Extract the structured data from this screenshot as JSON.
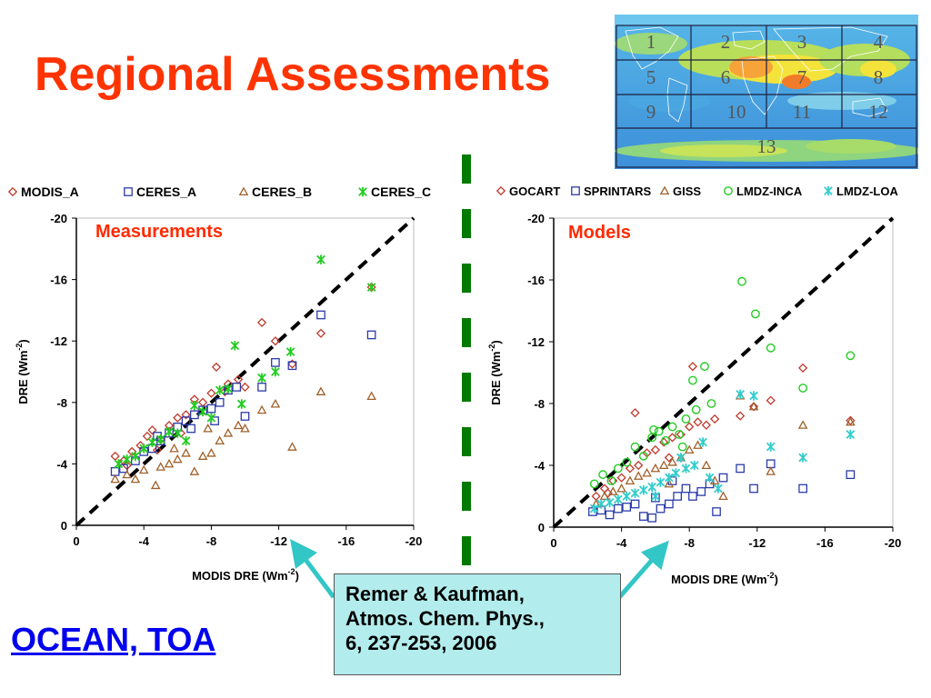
{
  "slide": {
    "title": "Regional Assessments",
    "footer_link": "OCEAN, TOA",
    "reference": [
      "Remer & Kaufman,",
      "Atmos. Chem. Phys.,",
      "6, 237-253, 2006"
    ],
    "colors": {
      "title": "#ff3300",
      "link": "#0000ee",
      "ref_box": "#b3ecec",
      "divider": "#007a00",
      "arrow": "#33c6c6"
    }
  },
  "map": {
    "region_labels": [
      "1",
      "2",
      "3",
      "4",
      "5",
      "6",
      "7",
      "8",
      "9",
      "10",
      "11",
      "12",
      "13"
    ]
  },
  "chart_data": [
    {
      "type": "scatter",
      "annotation": "Measurements",
      "xlabel": "MODIS DRE (Wm",
      "xlabel_sup": "-2",
      "ylabel": "DRE (Wm",
      "ylabel_sup": "-2",
      "xlim": [
        0,
        -20
      ],
      "ylim": [
        0,
        -20
      ],
      "xticks": [
        "0",
        "-4",
        "-8",
        "-12",
        "-16",
        "-20"
      ],
      "yticks": [
        "-20",
        "-16",
        "-12",
        "-8",
        "-4",
        "0"
      ],
      "reference_line": "1:1",
      "legend": [
        {
          "name": "MODIS_A",
          "marker": "diamond",
          "color": "#c0392b"
        },
        {
          "name": "CERES_A",
          "marker": "square",
          "color": "#2a3aa8"
        },
        {
          "name": "CERES_B",
          "marker": "triangle",
          "color": "#a0602a"
        },
        {
          "name": "CERES_C",
          "marker": "star",
          "color": "#22cc22"
        }
      ],
      "series": [
        {
          "name": "MODIS_A",
          "points": [
            [
              -2.3,
              -4.5
            ],
            [
              -2.8,
              -4.2
            ],
            [
              -3.3,
              -4.8
            ],
            [
              -3.8,
              -5.2
            ],
            [
              -4.2,
              -5.8
            ],
            [
              -4.5,
              -6.2
            ],
            [
              -5.0,
              -5.6
            ],
            [
              -5.5,
              -6.5
            ],
            [
              -6.0,
              -7.0
            ],
            [
              -6.5,
              -7.2
            ],
            [
              -7.0,
              -8.2
            ],
            [
              -7.5,
              -8.0
            ],
            [
              -8.0,
              -8.6
            ],
            [
              -8.3,
              -10.3
            ],
            [
              -9.0,
              -9.2
            ],
            [
              -9.6,
              -9.5
            ],
            [
              -10.0,
              -9.0
            ],
            [
              -11.0,
              -13.2
            ],
            [
              -11.8,
              -12.0
            ],
            [
              -12.8,
              -10.5
            ],
            [
              -14.5,
              -12.5
            ],
            [
              -17.5,
              -15.5
            ],
            [
              -3.0,
              -3.9
            ],
            [
              -4.8,
              -4.9
            ],
            [
              -6.2,
              -6.0
            ],
            [
              -8.8,
              -8.7
            ]
          ]
        },
        {
          "name": "CERES_A",
          "points": [
            [
              -2.3,
              -3.5
            ],
            [
              -2.8,
              -3.7
            ],
            [
              -3.5,
              -4.2
            ],
            [
              -4.0,
              -4.8
            ],
            [
              -4.5,
              -5.0
            ],
            [
              -5.0,
              -5.5
            ],
            [
              -5.5,
              -6.0
            ],
            [
              -6.0,
              -6.4
            ],
            [
              -6.5,
              -6.8
            ],
            [
              -7.0,
              -7.2
            ],
            [
              -7.5,
              -7.5
            ],
            [
              -8.0,
              -7.6
            ],
            [
              -8.5,
              -8.0
            ],
            [
              -9.0,
              -8.8
            ],
            [
              -9.5,
              -9.0
            ],
            [
              -10.0,
              -7.1
            ],
            [
              -11.0,
              -9.0
            ],
            [
              -11.8,
              -10.6
            ],
            [
              -12.8,
              -10.4
            ],
            [
              -14.5,
              -13.7
            ],
            [
              -17.5,
              -12.4
            ],
            [
              -4.8,
              -5.8
            ],
            [
              -6.8,
              -6.3
            ],
            [
              -8.2,
              -6.8
            ]
          ]
        },
        {
          "name": "CERES_B",
          "points": [
            [
              -2.3,
              -3.0
            ],
            [
              -3.0,
              -3.3
            ],
            [
              -3.5,
              -3.0
            ],
            [
              -4.0,
              -3.6
            ],
            [
              -4.7,
              -2.6
            ],
            [
              -5.0,
              -3.8
            ],
            [
              -5.5,
              -4.0
            ],
            [
              -6.0,
              -4.3
            ],
            [
              -6.5,
              -4.7
            ],
            [
              -7.0,
              -3.5
            ],
            [
              -7.5,
              -4.5
            ],
            [
              -8.0,
              -4.7
            ],
            [
              -8.5,
              -5.5
            ],
            [
              -9.0,
              -6.0
            ],
            [
              -9.6,
              -6.5
            ],
            [
              -10.0,
              -6.3
            ],
            [
              -11.0,
              -7.5
            ],
            [
              -11.8,
              -7.9
            ],
            [
              -12.8,
              -5.1
            ],
            [
              -14.5,
              -8.7
            ],
            [
              -17.5,
              -8.4
            ],
            [
              -5.8,
              -5.0
            ],
            [
              -7.8,
              -6.3
            ]
          ]
        },
        {
          "name": "CERES_C",
          "points": [
            [
              -2.5,
              -4.0
            ],
            [
              -3.0,
              -4.3
            ],
            [
              -3.5,
              -4.5
            ],
            [
              -4.0,
              -5.0
            ],
            [
              -4.5,
              -5.4
            ],
            [
              -5.0,
              -5.6
            ],
            [
              -5.5,
              -6.1
            ],
            [
              -6.0,
              -6.0
            ],
            [
              -6.5,
              -5.5
            ],
            [
              -7.0,
              -7.8
            ],
            [
              -7.5,
              -7.4
            ],
            [
              -8.0,
              -7.0
            ],
            [
              -8.5,
              -8.8
            ],
            [
              -9.0,
              -8.9
            ],
            [
              -9.4,
              -11.7
            ],
            [
              -9.8,
              -7.9
            ],
            [
              -11.0,
              -9.6
            ],
            [
              -11.8,
              -10.0
            ],
            [
              -12.7,
              -11.3
            ],
            [
              -14.5,
              -17.3
            ],
            [
              -17.5,
              -15.5
            ]
          ]
        }
      ]
    },
    {
      "type": "scatter",
      "annotation": "Models",
      "xlabel": "MODIS DRE (Wm",
      "xlabel_sup": "-2",
      "ylabel": "DRE (Wm",
      "ylabel_sup": "-2",
      "xlim": [
        0,
        -20
      ],
      "ylim": [
        0,
        -20
      ],
      "xticks": [
        "0",
        "-4",
        "-8",
        "-12",
        "-16",
        "-20"
      ],
      "yticks": [
        "-20",
        "-16",
        "-12",
        "-8",
        "-4",
        "0"
      ],
      "reference_line": "1:1",
      "legend": [
        {
          "name": "GOCART",
          "marker": "diamond",
          "color": "#c0392b"
        },
        {
          "name": "SPRINTARS",
          "marker": "square",
          "color": "#2a3aa8"
        },
        {
          "name": "GISS",
          "marker": "triangle",
          "color": "#a0602a"
        },
        {
          "name": "LMDZ-INCA",
          "marker": "circle",
          "color": "#22cc22"
        },
        {
          "name": "LMDZ-LOA",
          "marker": "star",
          "color": "#33cccc"
        }
      ],
      "series": [
        {
          "name": "GOCART",
          "points": [
            [
              -2.5,
              -2.0
            ],
            [
              -3.0,
              -2.5
            ],
            [
              -3.5,
              -3.0
            ],
            [
              -4.0,
              -3.2
            ],
            [
              -4.5,
              -3.8
            ],
            [
              -5.0,
              -4.0
            ],
            [
              -5.5,
              -4.8
            ],
            [
              -6.0,
              -5.0
            ],
            [
              -6.5,
              -5.5
            ],
            [
              -7.0,
              -5.8
            ],
            [
              -7.5,
              -6.0
            ],
            [
              -8.0,
              -6.5
            ],
            [
              -8.2,
              -10.4
            ],
            [
              -8.5,
              -6.8
            ],
            [
              -9.0,
              -6.6
            ],
            [
              -9.5,
              -7.0
            ],
            [
              -11.0,
              -7.2
            ],
            [
              -11.8,
              -7.8
            ],
            [
              -12.8,
              -8.2
            ],
            [
              -14.7,
              -10.3
            ],
            [
              -17.5,
              -6.9
            ],
            [
              -4.8,
              -7.4
            ],
            [
              -6.8,
              -4.5
            ],
            [
              -3.2,
              -2.2
            ]
          ]
        },
        {
          "name": "SPRINTARS",
          "points": [
            [
              -2.3,
              -1.0
            ],
            [
              -2.8,
              -1.1
            ],
            [
              -3.3,
              -0.8
            ],
            [
              -3.8,
              -1.2
            ],
            [
              -4.3,
              -1.3
            ],
            [
              -4.8,
              -1.5
            ],
            [
              -5.3,
              -0.7
            ],
            [
              -5.8,
              -0.6
            ],
            [
              -6.3,
              -1.2
            ],
            [
              -6.8,
              -1.5
            ],
            [
              -7.3,
              -2.0
            ],
            [
              -7.8,
              -2.5
            ],
            [
              -8.2,
              -2.0
            ],
            [
              -8.7,
              -2.3
            ],
            [
              -9.2,
              -2.8
            ],
            [
              -9.6,
              -1.0
            ],
            [
              -10.0,
              -3.2
            ],
            [
              -11.0,
              -3.8
            ],
            [
              -11.8,
              -2.5
            ],
            [
              -12.8,
              -4.1
            ],
            [
              -14.7,
              -2.5
            ],
            [
              -17.5,
              -3.4
            ],
            [
              -6.0,
              -1.9
            ],
            [
              -7.0,
              -3.0
            ]
          ]
        },
        {
          "name": "GISS",
          "points": [
            [
              -2.5,
              -1.5
            ],
            [
              -3.0,
              -2.0
            ],
            [
              -3.5,
              -2.3
            ],
            [
              -4.0,
              -2.5
            ],
            [
              -4.5,
              -3.0
            ],
            [
              -5.0,
              -3.3
            ],
            [
              -5.5,
              -3.5
            ],
            [
              -6.0,
              -3.8
            ],
            [
              -6.5,
              -4.0
            ],
            [
              -7.0,
              -4.2
            ],
            [
              -7.5,
              -4.5
            ],
            [
              -8.0,
              -5.0
            ],
            [
              -8.5,
              -5.3
            ],
            [
              -9.0,
              -4.0
            ],
            [
              -9.5,
              -3.0
            ],
            [
              -10.0,
              -2.0
            ],
            [
              -11.0,
              -8.5
            ],
            [
              -11.8,
              -7.8
            ],
            [
              -12.8,
              -3.6
            ],
            [
              -14.7,
              -6.6
            ],
            [
              -17.5,
              -6.8
            ],
            [
              -6.8,
              -2.8
            ]
          ]
        },
        {
          "name": "LMDZ-INCA",
          "points": [
            [
              -2.4,
              -2.8
            ],
            [
              -2.9,
              -3.4
            ],
            [
              -3.4,
              -3.0
            ],
            [
              -3.8,
              -3.8
            ],
            [
              -4.3,
              -4.2
            ],
            [
              -4.8,
              -5.2
            ],
            [
              -5.3,
              -4.6
            ],
            [
              -5.8,
              -5.8
            ],
            [
              -6.2,
              -6.2
            ],
            [
              -6.6,
              -5.6
            ],
            [
              -7.0,
              -6.5
            ],
            [
              -7.4,
              -6.0
            ],
            [
              -7.8,
              -7.0
            ],
            [
              -8.2,
              -9.5
            ],
            [
              -8.4,
              -7.6
            ],
            [
              -8.9,
              -10.4
            ],
            [
              -9.3,
              -8.0
            ],
            [
              -11.1,
              -15.9
            ],
            [
              -11.9,
              -13.8
            ],
            [
              -12.8,
              -11.6
            ],
            [
              -14.7,
              -9.0
            ],
            [
              -17.5,
              -11.1
            ],
            [
              -5.9,
              -6.3
            ],
            [
              -7.6,
              -5.2
            ]
          ]
        },
        {
          "name": "LMDZ-LOA",
          "points": [
            [
              -2.4,
              -1.2
            ],
            [
              -2.8,
              -1.5
            ],
            [
              -3.3,
              -1.6
            ],
            [
              -3.8,
              -1.8
            ],
            [
              -4.3,
              -2.0
            ],
            [
              -4.8,
              -2.2
            ],
            [
              -5.3,
              -2.4
            ],
            [
              -5.8,
              -2.6
            ],
            [
              -6.3,
              -2.9
            ],
            [
              -6.8,
              -3.2
            ],
            [
              -7.2,
              -3.5
            ],
            [
              -7.8,
              -3.8
            ],
            [
              -8.3,
              -4.0
            ],
            [
              -8.8,
              -5.5
            ],
            [
              -9.2,
              -3.2
            ],
            [
              -9.7,
              -2.5
            ],
            [
              -11.0,
              -8.6
            ],
            [
              -11.8,
              -8.5
            ],
            [
              -12.8,
              -5.2
            ],
            [
              -14.7,
              -4.5
            ],
            [
              -17.5,
              -6.0
            ],
            [
              -6.0,
              -2.0
            ],
            [
              -7.5,
              -4.5
            ]
          ]
        }
      ]
    }
  ]
}
